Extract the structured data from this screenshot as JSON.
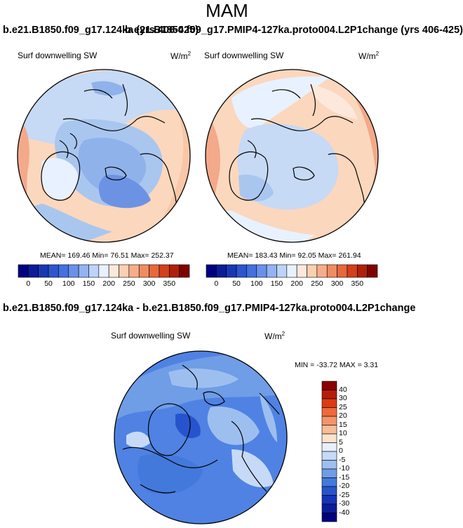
{
  "title": "MAM",
  "top_left_header": "b.e21.B1850.f09_g17.124ka (yrs 406-425)",
  "top_right_header": "b.e21.B1850.f09_g17.PMIP4-127ka.proto004.L2P1change (yrs 406-425)",
  "bottom_header": "b.e21.B1850.f09_g17.124ka - b.e21.B1850.f09_g17.PMIP4-127ka.proto004.L2P1change",
  "panels": [
    {
      "label": "Surf downwelling SW",
      "units_base": "W/m",
      "units_exp": "2",
      "stats_text": "MEAN= 169.46  Min=  76.51  Max= 252.37"
    },
    {
      "label": "Surf downwelling SW",
      "units_base": "W/m",
      "units_exp": "2",
      "stats_text": "MEAN= 183.43  Min=  92.05  Max= 261.94"
    },
    {
      "label": "Surf downwelling SW",
      "units_base": "W/m",
      "units_exp": "2",
      "stats_text": "MIN = -33.72 MAX =   3.31"
    }
  ],
  "colorbar_abs": {
    "colors": [
      "#00007f",
      "#0c1c99",
      "#1838b3",
      "#2d55cf",
      "#4470e0",
      "#6a91ea",
      "#93b3f2",
      "#bdd3fa",
      "#e8f1ff",
      "#fde9dc",
      "#fbcfb2",
      "#f6ae8a",
      "#ef8c62",
      "#e6683c",
      "#d2401c",
      "#b02008",
      "#7e0300"
    ],
    "ticks": [
      "0",
      "50",
      "100",
      "150",
      "200",
      "250",
      "300",
      "350"
    ]
  },
  "colorbar_diff": {
    "colors_top_to_bottom": [
      "#8b0000",
      "#b71c0a",
      "#dc3c12",
      "#ef6a3a",
      "#f49468",
      "#f8bd97",
      "#fde3cb",
      "#e8f0fc",
      "#c6daf7",
      "#9dbff0",
      "#6f9de6",
      "#4479dc",
      "#2754ce",
      "#1534b8",
      "#0a1c9a",
      "#00007f"
    ],
    "labels_top_to_bottom": [
      "40",
      "30",
      "25",
      "20",
      "15",
      "10",
      "5",
      "0",
      "-5",
      "-10",
      "-15",
      "-20",
      "-25",
      "-30",
      "-40"
    ]
  },
  "chart_data": [
    {
      "type": "heatmap",
      "title": "Surf downwelling SW",
      "subtitle": "b.e21.B1850.f09_g17.124ka (yrs 406-425)",
      "units": "W/m2",
      "projection": "north-polar stereographic",
      "mean": 169.46,
      "min": 76.51,
      "max": 252.37,
      "colorbar_range": [
        0,
        350
      ]
    },
    {
      "type": "heatmap",
      "title": "Surf downwelling SW",
      "subtitle": "b.e21.B1850.f09_g17.PMIP4-127ka.proto004.L2P1change (yrs 406-425)",
      "units": "W/m2",
      "projection": "north-polar stereographic",
      "mean": 183.43,
      "min": 92.05,
      "max": 261.94,
      "colorbar_range": [
        0,
        350
      ]
    },
    {
      "type": "heatmap",
      "title": "Surf downwelling SW",
      "subtitle": "b.e21.B1850.f09_g17.124ka - b.e21.B1850.f09_g17.PMIP4-127ka.proto004.L2P1change",
      "units": "W/m2",
      "projection": "north-polar stereographic",
      "min": -33.72,
      "max": 3.31,
      "colorbar_range": [
        -40,
        40
      ]
    }
  ]
}
